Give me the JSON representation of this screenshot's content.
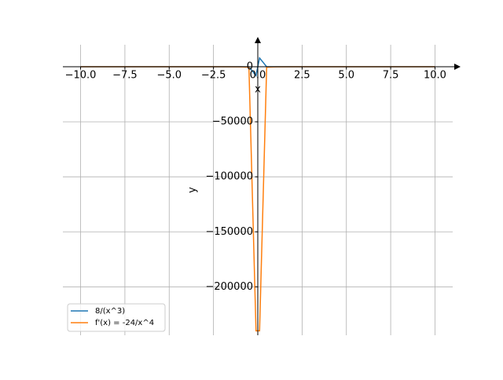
{
  "chart_data": {
    "type": "line",
    "x_label": "x",
    "y_label": "y",
    "x": [
      -10,
      -8,
      -6,
      -4,
      -2,
      -1,
      -0.5,
      -0.1,
      0.1,
      0.5,
      1,
      2,
      4,
      6,
      8,
      10
    ],
    "series": [
      {
        "name": "8/(x^3)",
        "color": "#1f77b4",
        "values": [
          -0.008,
          -0.015625,
          -0.037,
          -0.125,
          -1,
          -8,
          -64,
          -8000,
          8000,
          64,
          8,
          1,
          0.125,
          0.037,
          0.015625,
          0.008
        ]
      },
      {
        "name": "f'(x) = -24/x^4",
        "color": "#ff7f0e",
        "values": [
          -0.0024,
          -0.00586,
          -0.0185,
          -0.09375,
          -1.5,
          -24,
          -384,
          -240000,
          -240000,
          -384,
          -24,
          -1.5,
          -0.09375,
          -0.0185,
          -0.00586,
          -0.0024
        ]
      }
    ],
    "xlim": [
      -11,
      11
    ],
    "ylim": [
      -244000,
      20000
    ],
    "xticks": [
      {
        "value": -10,
        "label": "−10.0"
      },
      {
        "value": -7.5,
        "label": "−7.5"
      },
      {
        "value": -5,
        "label": "−5.0"
      },
      {
        "value": -2.5,
        "label": "−2.5"
      },
      {
        "value": 0,
        "label": "0.0"
      },
      {
        "value": 2.5,
        "label": "2.5"
      },
      {
        "value": 5,
        "label": "5.0"
      },
      {
        "value": 7.5,
        "label": "7.5"
      },
      {
        "value": 10,
        "label": "10.0"
      }
    ],
    "yticks": [
      {
        "value": -200000,
        "label": "−200000"
      },
      {
        "value": -150000,
        "label": "−150000"
      },
      {
        "value": -100000,
        "label": "−100000"
      },
      {
        "value": -50000,
        "label": "−50000"
      },
      0
    ],
    "grid": true,
    "legend": "lower left"
  }
}
